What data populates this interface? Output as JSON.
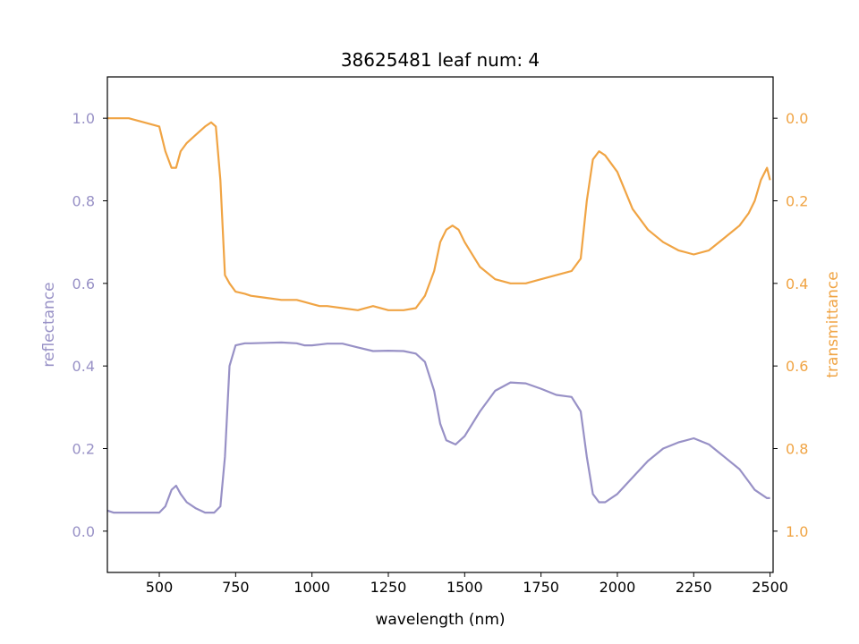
{
  "chart_data": {
    "type": "line",
    "title": "38625481 leaf num: 4",
    "xlabel": "wavelength (nm)",
    "ylabel_left": "reflectance",
    "ylabel_right": "transmittance",
    "xlim": [
      330,
      2510
    ],
    "ylim_left": [
      -0.1,
      1.1
    ],
    "ylim_right_inverted": [
      1.1,
      -0.1
    ],
    "xticks": [
      500,
      750,
      1000,
      1250,
      1500,
      1750,
      2000,
      2250,
      2500
    ],
    "yticks_left": [
      0.0,
      0.2,
      0.4,
      0.6,
      0.8,
      1.0
    ],
    "yticks_right": [
      0.0,
      0.2,
      0.4,
      0.6,
      0.8,
      1.0
    ],
    "grid": false,
    "colors": {
      "reflectance": "#9891c6",
      "transmittance": "#f0a444",
      "axes": "#000000"
    },
    "series": [
      {
        "name": "reflectance",
        "axis": "left",
        "x": [
          330,
          350,
          400,
          450,
          500,
          520,
          540,
          555,
          570,
          590,
          620,
          650,
          680,
          700,
          715,
          730,
          750,
          780,
          800,
          850,
          900,
          950,
          975,
          1000,
          1025,
          1050,
          1100,
          1150,
          1200,
          1250,
          1300,
          1340,
          1370,
          1400,
          1420,
          1440,
          1470,
          1500,
          1550,
          1600,
          1650,
          1700,
          1750,
          1800,
          1850,
          1880,
          1900,
          1920,
          1940,
          1960,
          2000,
          2050,
          2100,
          2150,
          2200,
          2250,
          2300,
          2350,
          2400,
          2430,
          2450,
          2470,
          2490,
          2500
        ],
        "y": [
          0.05,
          0.045,
          0.045,
          0.045,
          0.045,
          0.06,
          0.1,
          0.11,
          0.09,
          0.07,
          0.055,
          0.045,
          0.045,
          0.06,
          0.18,
          0.4,
          0.45,
          0.455,
          0.455,
          0.456,
          0.457,
          0.455,
          0.45,
          0.45,
          0.452,
          0.454,
          0.454,
          0.445,
          0.436,
          0.437,
          0.436,
          0.43,
          0.41,
          0.34,
          0.26,
          0.22,
          0.21,
          0.23,
          0.29,
          0.34,
          0.36,
          0.358,
          0.345,
          0.33,
          0.325,
          0.29,
          0.18,
          0.09,
          0.07,
          0.07,
          0.09,
          0.13,
          0.17,
          0.2,
          0.215,
          0.225,
          0.21,
          0.18,
          0.15,
          0.12,
          0.1,
          0.09,
          0.08,
          0.08
        ]
      },
      {
        "name": "transmittance",
        "axis": "right",
        "x": [
          330,
          350,
          400,
          450,
          500,
          520,
          540,
          555,
          570,
          590,
          620,
          650,
          670,
          685,
          700,
          715,
          730,
          750,
          780,
          800,
          850,
          900,
          950,
          975,
          1000,
          1025,
          1050,
          1100,
          1150,
          1200,
          1250,
          1300,
          1340,
          1370,
          1400,
          1420,
          1440,
          1460,
          1480,
          1500,
          1550,
          1600,
          1650,
          1700,
          1750,
          1800,
          1850,
          1880,
          1900,
          1920,
          1940,
          1960,
          2000,
          2050,
          2100,
          2150,
          2200,
          2250,
          2300,
          2350,
          2400,
          2430,
          2450,
          2470,
          2490,
          2500
        ],
        "y": [
          0.0,
          0.0,
          0.0,
          0.01,
          0.02,
          0.08,
          0.12,
          0.12,
          0.08,
          0.06,
          0.04,
          0.02,
          0.01,
          0.02,
          0.15,
          0.38,
          0.4,
          0.42,
          0.425,
          0.43,
          0.435,
          0.44,
          0.44,
          0.445,
          0.45,
          0.455,
          0.455,
          0.46,
          0.465,
          0.455,
          0.465,
          0.465,
          0.46,
          0.43,
          0.37,
          0.3,
          0.27,
          0.26,
          0.27,
          0.3,
          0.36,
          0.39,
          0.4,
          0.4,
          0.39,
          0.38,
          0.37,
          0.34,
          0.2,
          0.1,
          0.08,
          0.09,
          0.13,
          0.22,
          0.27,
          0.3,
          0.32,
          0.33,
          0.32,
          0.29,
          0.26,
          0.23,
          0.2,
          0.15,
          0.12,
          0.15
        ]
      }
    ]
  }
}
